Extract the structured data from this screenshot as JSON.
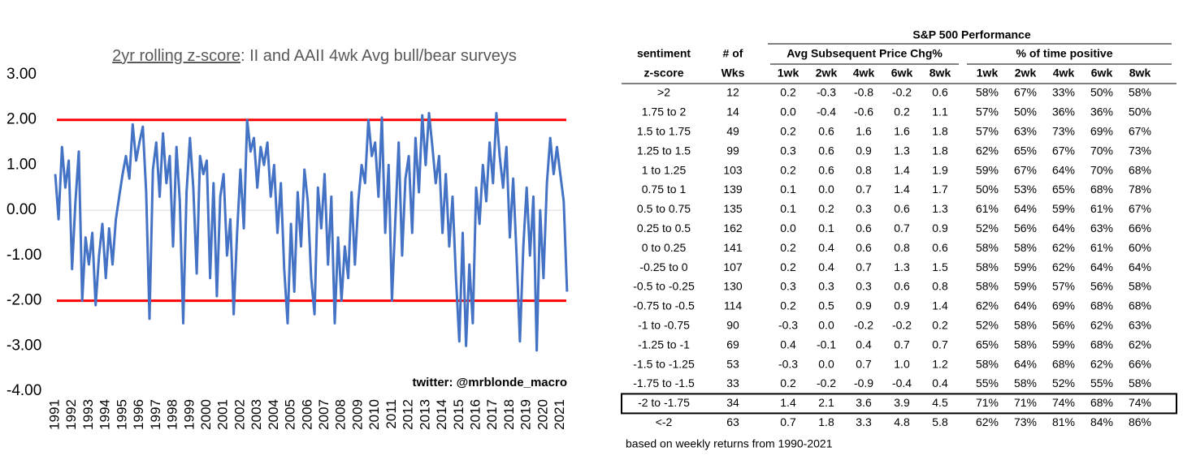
{
  "chart_data": {
    "type": "line",
    "title": [
      "2yr rolling z-score",
      ": II and AAII 4wk Avg bull/bear surveys"
    ],
    "annotation": "twitter: @mrblonde_macro",
    "color": "#4472c4",
    "x": [
      1991,
      1991.2,
      1991.4,
      1991.6,
      1991.8,
      1992,
      1992.2,
      1992.4,
      1992.6,
      1992.8,
      1993,
      1993.2,
      1993.4,
      1993.6,
      1993.8,
      1994,
      1994.2,
      1994.4,
      1994.6,
      1994.8,
      1995,
      1995.2,
      1995.4,
      1995.6,
      1995.8,
      1996,
      1996.2,
      1996.4,
      1996.6,
      1996.8,
      1997,
      1997.2,
      1997.4,
      1997.6,
      1997.8,
      1998,
      1998.2,
      1998.4,
      1998.6,
      1998.8,
      1999,
      1999.2,
      1999.4,
      1999.6,
      1999.8,
      2000,
      2000.2,
      2000.4,
      2000.6,
      2000.8,
      2001,
      2001.2,
      2001.4,
      2001.6,
      2001.8,
      2002,
      2002.2,
      2002.4,
      2002.6,
      2002.8,
      2003,
      2003.2,
      2003.4,
      2003.6,
      2003.8,
      2004,
      2004.2,
      2004.4,
      2004.6,
      2004.8,
      2005,
      2005.2,
      2005.4,
      2005.6,
      2005.8,
      2006,
      2006.2,
      2006.4,
      2006.6,
      2006.8,
      2007,
      2007.2,
      2007.4,
      2007.6,
      2007.8,
      2008,
      2008.2,
      2008.4,
      2008.6,
      2008.8,
      2009,
      2009.2,
      2009.4,
      2009.6,
      2009.8,
      2010,
      2010.2,
      2010.4,
      2010.6,
      2010.8,
      2011,
      2011.2,
      2011.4,
      2011.6,
      2011.8,
      2012,
      2012.2,
      2012.4,
      2012.6,
      2012.8,
      2013,
      2013.2,
      2013.4,
      2013.6,
      2013.8,
      2014,
      2014.2,
      2014.4,
      2014.6,
      2014.8,
      2015,
      2015.2,
      2015.4,
      2015.6,
      2015.8,
      2016,
      2016.2,
      2016.4,
      2016.6,
      2016.8,
      2017,
      2017.2,
      2017.4,
      2017.6,
      2017.8,
      2018,
      2018.2,
      2018.4,
      2018.6,
      2018.8,
      2019,
      2019.2,
      2019.4,
      2019.6,
      2019.8,
      2020,
      2020.2,
      2020.4,
      2020.6,
      2020.8,
      2021,
      2021.2,
      2021.4
    ],
    "values": [
      0.8,
      -0.2,
      1.4,
      0.5,
      1.1,
      -1.3,
      0.2,
      1.3,
      -2.0,
      -0.6,
      -1.2,
      -0.5,
      -2.1,
      -1.0,
      -0.3,
      -1.5,
      -0.4,
      -1.2,
      -0.2,
      0.3,
      0.8,
      1.2,
      0.7,
      1.9,
      1.1,
      1.5,
      1.85,
      0.4,
      -2.4,
      0.9,
      1.5,
      0.3,
      1.7,
      0.6,
      1.2,
      -0.8,
      1.4,
      0.2,
      -2.5,
      0.4,
      1.6,
      0.5,
      -1.4,
      1.2,
      0.8,
      1.1,
      -1.5,
      0.6,
      -1.9,
      0.3,
      0.8,
      -1.0,
      -0.2,
      -2.3,
      -0.5,
      0.9,
      -0.4,
      2.0,
      1.3,
      1.6,
      0.5,
      1.4,
      1.0,
      1.5,
      0.3,
      1.0,
      -0.5,
      0.6,
      -1.3,
      -2.5,
      -0.3,
      -1.8,
      0.4,
      -0.8,
      0.9,
      0.2,
      -1.5,
      -2.3,
      0.5,
      -0.4,
      0.8,
      -1.2,
      0.3,
      -2.5,
      -0.6,
      -2.0,
      -0.8,
      -1.5,
      0.4,
      -1.2,
      0.2,
      1.0,
      0.6,
      2.0,
      1.2,
      1.5,
      0.3,
      2.05,
      -0.5,
      1.0,
      -2.0,
      -0.2,
      1.5,
      -1.0,
      0.7,
      1.2,
      -0.5,
      1.6,
      0.4,
      2.1,
      1.0,
      2.15,
      1.4,
      0.6,
      1.2,
      -0.5,
      0.8,
      -0.8,
      0.3,
      -1.5,
      -2.9,
      -0.5,
      -3.0,
      -1.2,
      -2.5,
      0.5,
      -0.3,
      1.0,
      0.2,
      1.5,
      0.6,
      2.15,
      1.2,
      0.5,
      1.4,
      -0.6,
      0.7,
      -1.0,
      -2.9,
      -0.8,
      0.5,
      -1.0,
      0.3,
      -3.1,
      0.0,
      -1.5,
      0.6,
      1.6,
      0.8,
      1.4,
      0.8,
      0.2,
      -1.8
    ],
    "xlim": [
      1991,
      2021.5
    ],
    "xticks": [
      1991,
      1992,
      1993,
      1994,
      1995,
      1996,
      1997,
      1998,
      1999,
      2000,
      2001,
      2002,
      2003,
      2004,
      2005,
      2006,
      2007,
      2008,
      2009,
      2010,
      2011,
      2012,
      2013,
      2014,
      2015,
      2016,
      2017,
      2018,
      2019,
      2020,
      2021
    ],
    "ylim": [
      -4,
      3
    ],
    "yticks": [
      {
        "value": 3,
        "label": "3.00"
      },
      {
        "value": 2,
        "label": "2.00"
      },
      {
        "value": 1,
        "label": "1.00"
      },
      {
        "value": 0,
        "label": "0.00"
      },
      {
        "value": -1,
        "label": "-1.00"
      },
      {
        "value": -2,
        "label": "-2.00"
      },
      {
        "value": -3,
        "label": "-3.00"
      },
      {
        "value": -4,
        "label": "-4.00"
      }
    ],
    "hlines": [
      {
        "value": 0,
        "color": "#d9d9d9"
      },
      {
        "value": 2,
        "color": "#ff0000"
      },
      {
        "value": -2,
        "color": "#ff0000"
      }
    ]
  },
  "table": {
    "title": "S&P 500 Performance",
    "header": [
      "sentiment",
      "# of",
      "Avg Subsequent Price Chg%",
      "% of time positive"
    ],
    "subheader": [
      "z-score",
      "Wks",
      "1wk",
      "2wk",
      "4wk",
      "6wk",
      "8wk",
      "1wk",
      "2wk",
      "4wk",
      "6wk",
      "8wk"
    ],
    "rows": [
      [
        ">2",
        "12",
        "0.2",
        "-0.3",
        "-0.8",
        "-0.2",
        "0.6",
        "58%",
        "67%",
        "33%",
        "50%",
        "58%"
      ],
      [
        "1.75 to 2",
        "14",
        "0.0",
        "-0.4",
        "-0.6",
        "0.2",
        "1.1",
        "57%",
        "50%",
        "36%",
        "36%",
        "50%"
      ],
      [
        "1.5 to 1.75",
        "49",
        "0.2",
        "0.6",
        "1.6",
        "1.6",
        "1.8",
        "57%",
        "63%",
        "73%",
        "69%",
        "67%"
      ],
      [
        "1.25 to 1.5",
        "99",
        "0.3",
        "0.6",
        "0.9",
        "1.3",
        "1.8",
        "62%",
        "65%",
        "67%",
        "70%",
        "73%"
      ],
      [
        "1 to 1.25",
        "103",
        "0.2",
        "0.6",
        "0.8",
        "1.4",
        "1.9",
        "59%",
        "67%",
        "64%",
        "70%",
        "68%"
      ],
      [
        "0.75 to 1",
        "139",
        "0.1",
        "0.0",
        "0.7",
        "1.4",
        "1.7",
        "50%",
        "53%",
        "65%",
        "68%",
        "78%"
      ],
      [
        "0.5 to 0.75",
        "135",
        "0.1",
        "0.2",
        "0.3",
        "0.6",
        "1.3",
        "61%",
        "64%",
        "59%",
        "61%",
        "67%"
      ],
      [
        "0.25 to 0.5",
        "162",
        "0.0",
        "0.1",
        "0.6",
        "0.7",
        "0.9",
        "52%",
        "56%",
        "64%",
        "63%",
        "66%"
      ],
      [
        "0 to 0.25",
        "141",
        "0.2",
        "0.4",
        "0.6",
        "0.8",
        "0.6",
        "58%",
        "58%",
        "62%",
        "61%",
        "60%"
      ],
      [
        "-0.25 to 0",
        "107",
        "0.2",
        "0.4",
        "0.7",
        "1.3",
        "1.5",
        "58%",
        "59%",
        "62%",
        "64%",
        "64%"
      ],
      [
        "-0.5 to -0.25",
        "130",
        "0.3",
        "0.3",
        "0.3",
        "0.6",
        "0.8",
        "58%",
        "59%",
        "57%",
        "56%",
        "58%"
      ],
      [
        "-0.75 to -0.5",
        "114",
        "0.2",
        "0.5",
        "0.9",
        "0.9",
        "1.4",
        "62%",
        "64%",
        "69%",
        "68%",
        "68%"
      ],
      [
        "-1 to -0.75",
        "90",
        "-0.3",
        "0.0",
        "-0.2",
        "-0.2",
        "0.2",
        "52%",
        "58%",
        "56%",
        "62%",
        "63%"
      ],
      [
        "-1.25 to -1",
        "69",
        "0.4",
        "-0.1",
        "0.4",
        "0.7",
        "0.7",
        "65%",
        "58%",
        "59%",
        "68%",
        "62%"
      ],
      [
        "-1.5 to -1.25",
        "53",
        "-0.3",
        "0.0",
        "0.7",
        "1.0",
        "1.2",
        "58%",
        "64%",
        "68%",
        "62%",
        "66%"
      ],
      [
        "-1.75 to -1.5",
        "33",
        "0.2",
        "-0.2",
        "-0.9",
        "-0.4",
        "0.4",
        "55%",
        "58%",
        "52%",
        "55%",
        "58%"
      ],
      [
        "-2 to -1.75",
        "34",
        "1.4",
        "2.1",
        "3.6",
        "3.9",
        "4.5",
        "71%",
        "71%",
        "74%",
        "68%",
        "74%"
      ],
      [
        "<-2",
        "63",
        "0.7",
        "1.8",
        "3.3",
        "4.8",
        "5.8",
        "62%",
        "73%",
        "81%",
        "84%",
        "86%"
      ]
    ],
    "boxed_row": 16,
    "highlight": {
      "color": "#ff0000",
      "cells": [
        [
          0,
          3
        ],
        [
          0,
          4
        ],
        [
          0,
          5
        ],
        [
          1,
          3
        ],
        [
          1,
          4
        ],
        [
          5,
          3
        ],
        [
          7,
          2
        ],
        [
          12,
          2
        ],
        [
          12,
          3
        ],
        [
          12,
          4
        ],
        [
          12,
          5
        ],
        [
          13,
          3
        ],
        [
          14,
          2
        ],
        [
          14,
          3
        ],
        [
          15,
          3
        ],
        [
          15,
          4
        ],
        [
          15,
          5
        ]
      ]
    },
    "footer": "based on weekly returns from 1990-2021"
  }
}
